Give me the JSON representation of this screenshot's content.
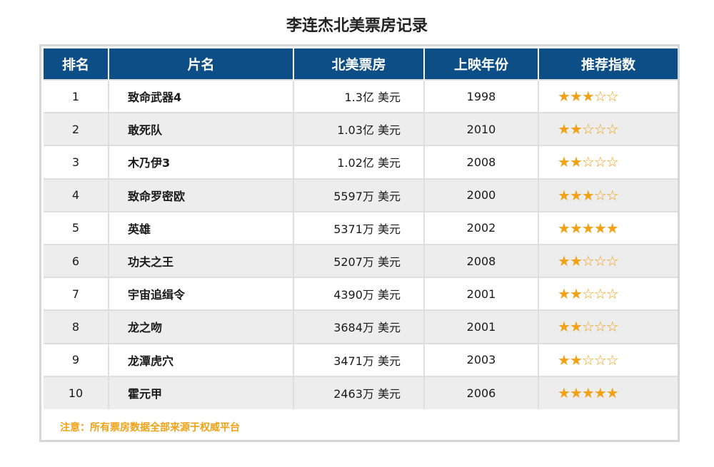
{
  "title": "李连杰北美票房记录",
  "columns": [
    "排名",
    "片名",
    "北美票房",
    "上映年份",
    "推荐指数"
  ],
  "rows": [
    {
      "rank": "1",
      "name": "致命武器4",
      "box": "1.3亿 美元",
      "year": "1998",
      "stars": 3
    },
    {
      "rank": "2",
      "name": "敢死队",
      "box": "1.03亿 美元",
      "year": "2010",
      "stars": 2
    },
    {
      "rank": "3",
      "name": "木乃伊3",
      "box": "1.02亿 美元",
      "year": "2008",
      "stars": 2
    },
    {
      "rank": "4",
      "name": "致命罗密欧",
      "box": "5597万 美元",
      "year": "2000",
      "stars": 3
    },
    {
      "rank": "5",
      "name": "英雄",
      "box": "5371万 美元",
      "year": "2002",
      "stars": 5
    },
    {
      "rank": "6",
      "name": "功夫之王",
      "box": "5207万 美元",
      "year": "2008",
      "stars": 2
    },
    {
      "rank": "7",
      "name": "宇宙追缉令",
      "box": "4390万 美元",
      "year": "2001",
      "stars": 2
    },
    {
      "rank": "8",
      "name": "龙之吻",
      "box": "3684万 美元",
      "year": "2001",
      "stars": 2
    },
    {
      "rank": "9",
      "name": "龙潭虎穴",
      "box": "3471万 美元",
      "year": "2003",
      "stars": 2
    },
    {
      "rank": "10",
      "name": "霍元甲",
      "box": "2463万 美元",
      "year": "2006",
      "stars": 5
    }
  ],
  "note": "注意：所有票房数据全部来源于权威平台",
  "colors": {
    "header": "#0d4e86",
    "star": "#f0a116",
    "alt_row": "#ededed"
  }
}
